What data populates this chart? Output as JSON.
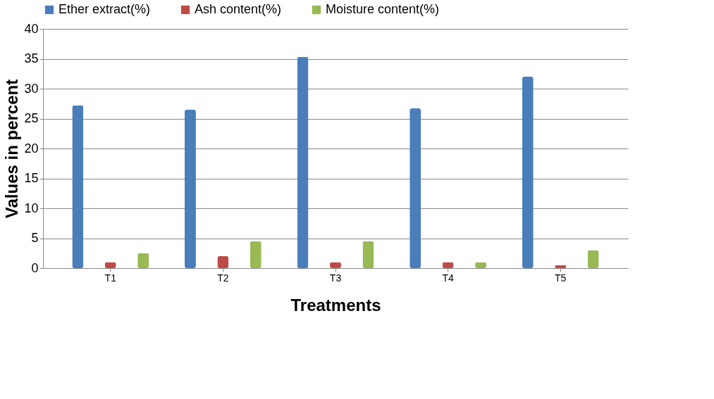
{
  "chart_data": {
    "type": "bar",
    "xlabel": "Treatments",
    "ylabel": "Values in percent",
    "categories": [
      "T1",
      "T2",
      "T3",
      "T4",
      "T5"
    ],
    "series": [
      {
        "name": "Ether extract(%)",
        "color": "#4a7ebb",
        "values": [
          27.2,
          26.5,
          35.3,
          26.7,
          32.0
        ]
      },
      {
        "name": "Ash content(%)",
        "color": "#be4b48",
        "values": [
          1.0,
          2.0,
          1.0,
          1.0,
          0.5
        ]
      },
      {
        "name": "Moisture content(%)",
        "color": "#98b954",
        "values": [
          2.5,
          4.5,
          4.5,
          1.0,
          3.0
        ]
      }
    ],
    "ylim": [
      0,
      40
    ],
    "yticks": [
      0,
      5,
      10,
      15,
      20,
      25,
      30,
      35,
      40
    ],
    "grid": "y",
    "legend": "top"
  }
}
